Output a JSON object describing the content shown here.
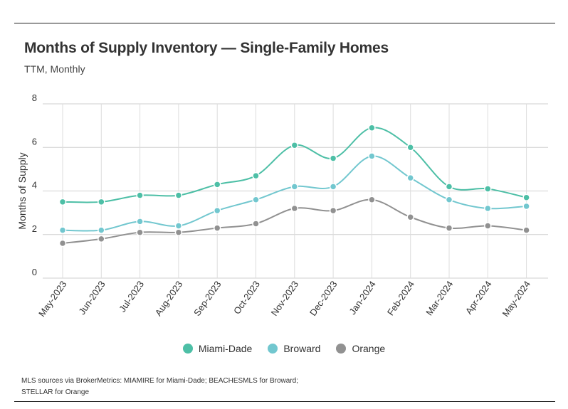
{
  "header": {
    "title": "Months of Supply Inventory — Single-Family Homes",
    "subtitle": "TTM, Monthly"
  },
  "source": {
    "line1": "MLS sources via BrokerMetrics: MIAMIRE for Miami-Dade; BEACHESMLS for Broward;",
    "line2": "STELLAR for Orange"
  },
  "chart_data": {
    "type": "line",
    "title": "Months of Supply Inventory — Single-Family Homes",
    "subtitle": "TTM, Monthly",
    "xlabel": "",
    "ylabel": "Months of Supply",
    "ylim": [
      0,
      8
    ],
    "yticks": [
      0,
      2,
      4,
      6,
      8
    ],
    "grid": true,
    "legend_position": "bottom",
    "categories": [
      "May-2023",
      "Jun-2023",
      "Jul-2023",
      "Aug-2023",
      "Sep-2023",
      "Oct-2023",
      "Nov-2023",
      "Dec-2023",
      "Jan-2024",
      "Feb-2024",
      "Mar-2024",
      "Apr-2024",
      "May-2024"
    ],
    "series": [
      {
        "name": "Miami-Dade",
        "color": "#4dbfa6",
        "values": [
          3.5,
          3.5,
          3.8,
          3.8,
          4.3,
          4.7,
          6.1,
          5.5,
          6.9,
          6.0,
          4.2,
          4.1,
          3.7
        ]
      },
      {
        "name": "Broward",
        "color": "#72c7cf",
        "values": [
          2.2,
          2.2,
          2.6,
          2.4,
          3.1,
          3.6,
          4.2,
          4.2,
          5.6,
          4.6,
          3.6,
          3.2,
          3.3
        ]
      },
      {
        "name": "Orange",
        "color": "#919191",
        "values": [
          1.6,
          1.8,
          2.1,
          2.1,
          2.3,
          2.5,
          3.2,
          3.1,
          3.6,
          2.8,
          2.3,
          2.4,
          2.2
        ]
      }
    ]
  }
}
